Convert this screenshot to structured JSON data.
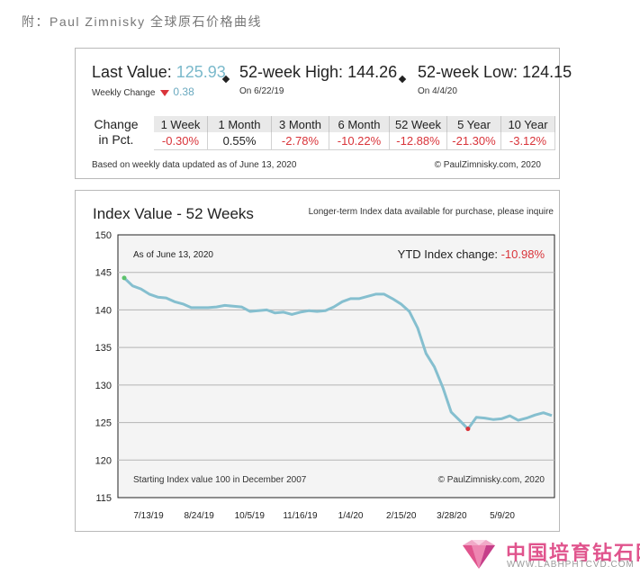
{
  "caption": "附：Paul Zimnisky 全球原石价格曲线",
  "stats": {
    "last_value_label": "Last Value:",
    "last_value": "125.93",
    "weekly_change_label": "Weekly Change",
    "weekly_change_value": "0.38",
    "high_label": "52-week High:",
    "high_value": "144.26",
    "high_date": "On 6/22/19",
    "low_label": "52-week Low:",
    "low_value": "124.15",
    "low_date": "On 4/4/20"
  },
  "change_table": {
    "row_label_line1": "Change",
    "row_label_line2": "in Pct.",
    "headers": [
      "1 Week",
      "1 Month",
      "3 Month",
      "6 Month",
      "52 Week",
      "5 Year",
      "10 Year"
    ],
    "values": [
      "-0.30%",
      "0.55%",
      "-2.78%",
      "-10.22%",
      "-12.88%",
      "-21.30%",
      "-3.12%"
    ]
  },
  "stats_footer_left": "Based on weekly data updated as of June 13, 2020",
  "stats_footer_right": "© PaulZimnisky.com, 2020",
  "colors": {
    "line": "#85bfcf",
    "negative": "#d9343a",
    "accent": "#7ab9cb",
    "high_marker": "#5cc26b",
    "low_marker": "#d9343a",
    "logo": "#e0548d"
  },
  "chart_data": {
    "type": "line",
    "title": "Index Value - 52 Weeks",
    "note": "Longer-term Index data available for purchase, please inquire",
    "as_of": "As of June 13, 2020",
    "ytd_label": "YTD Index change: ",
    "ytd_value": "-10.98%",
    "footer_left": "Starting Index value 100 in December 2007",
    "footer_right": "© PaulZimnisky.com, 2020",
    "ylim": [
      115,
      150
    ],
    "yticks": [
      115,
      120,
      125,
      130,
      135,
      140,
      145,
      150
    ],
    "x_labels": [
      "7/13/19",
      "8/24/19",
      "10/5/19",
      "11/16/19",
      "1/4/20",
      "2/15/20",
      "3/28/20",
      "5/9/20"
    ],
    "grid": true,
    "series": [
      {
        "values": [
          144.26,
          143.2,
          142.8,
          142.1,
          141.7,
          141.6,
          141.1,
          140.8,
          140.3,
          140.3,
          140.3,
          140.4,
          140.6,
          140.5,
          140.4,
          139.8,
          139.9,
          140.0,
          139.6,
          139.7,
          139.4,
          139.7,
          139.9,
          139.8,
          139.9,
          140.4,
          141.1,
          141.5,
          141.5,
          141.8,
          142.1,
          142.1,
          141.5,
          140.8,
          139.8,
          137.6,
          134.2,
          132.4,
          129.7,
          126.4,
          125.3,
          124.15,
          125.7,
          125.6,
          125.4,
          125.5,
          125.9,
          125.3,
          125.6,
          126.0,
          126.3,
          125.93
        ]
      }
    ]
  },
  "logo": {
    "cn": "中国培育钻石网",
    "url": "WWW.LABHPHTCVD.COM"
  }
}
